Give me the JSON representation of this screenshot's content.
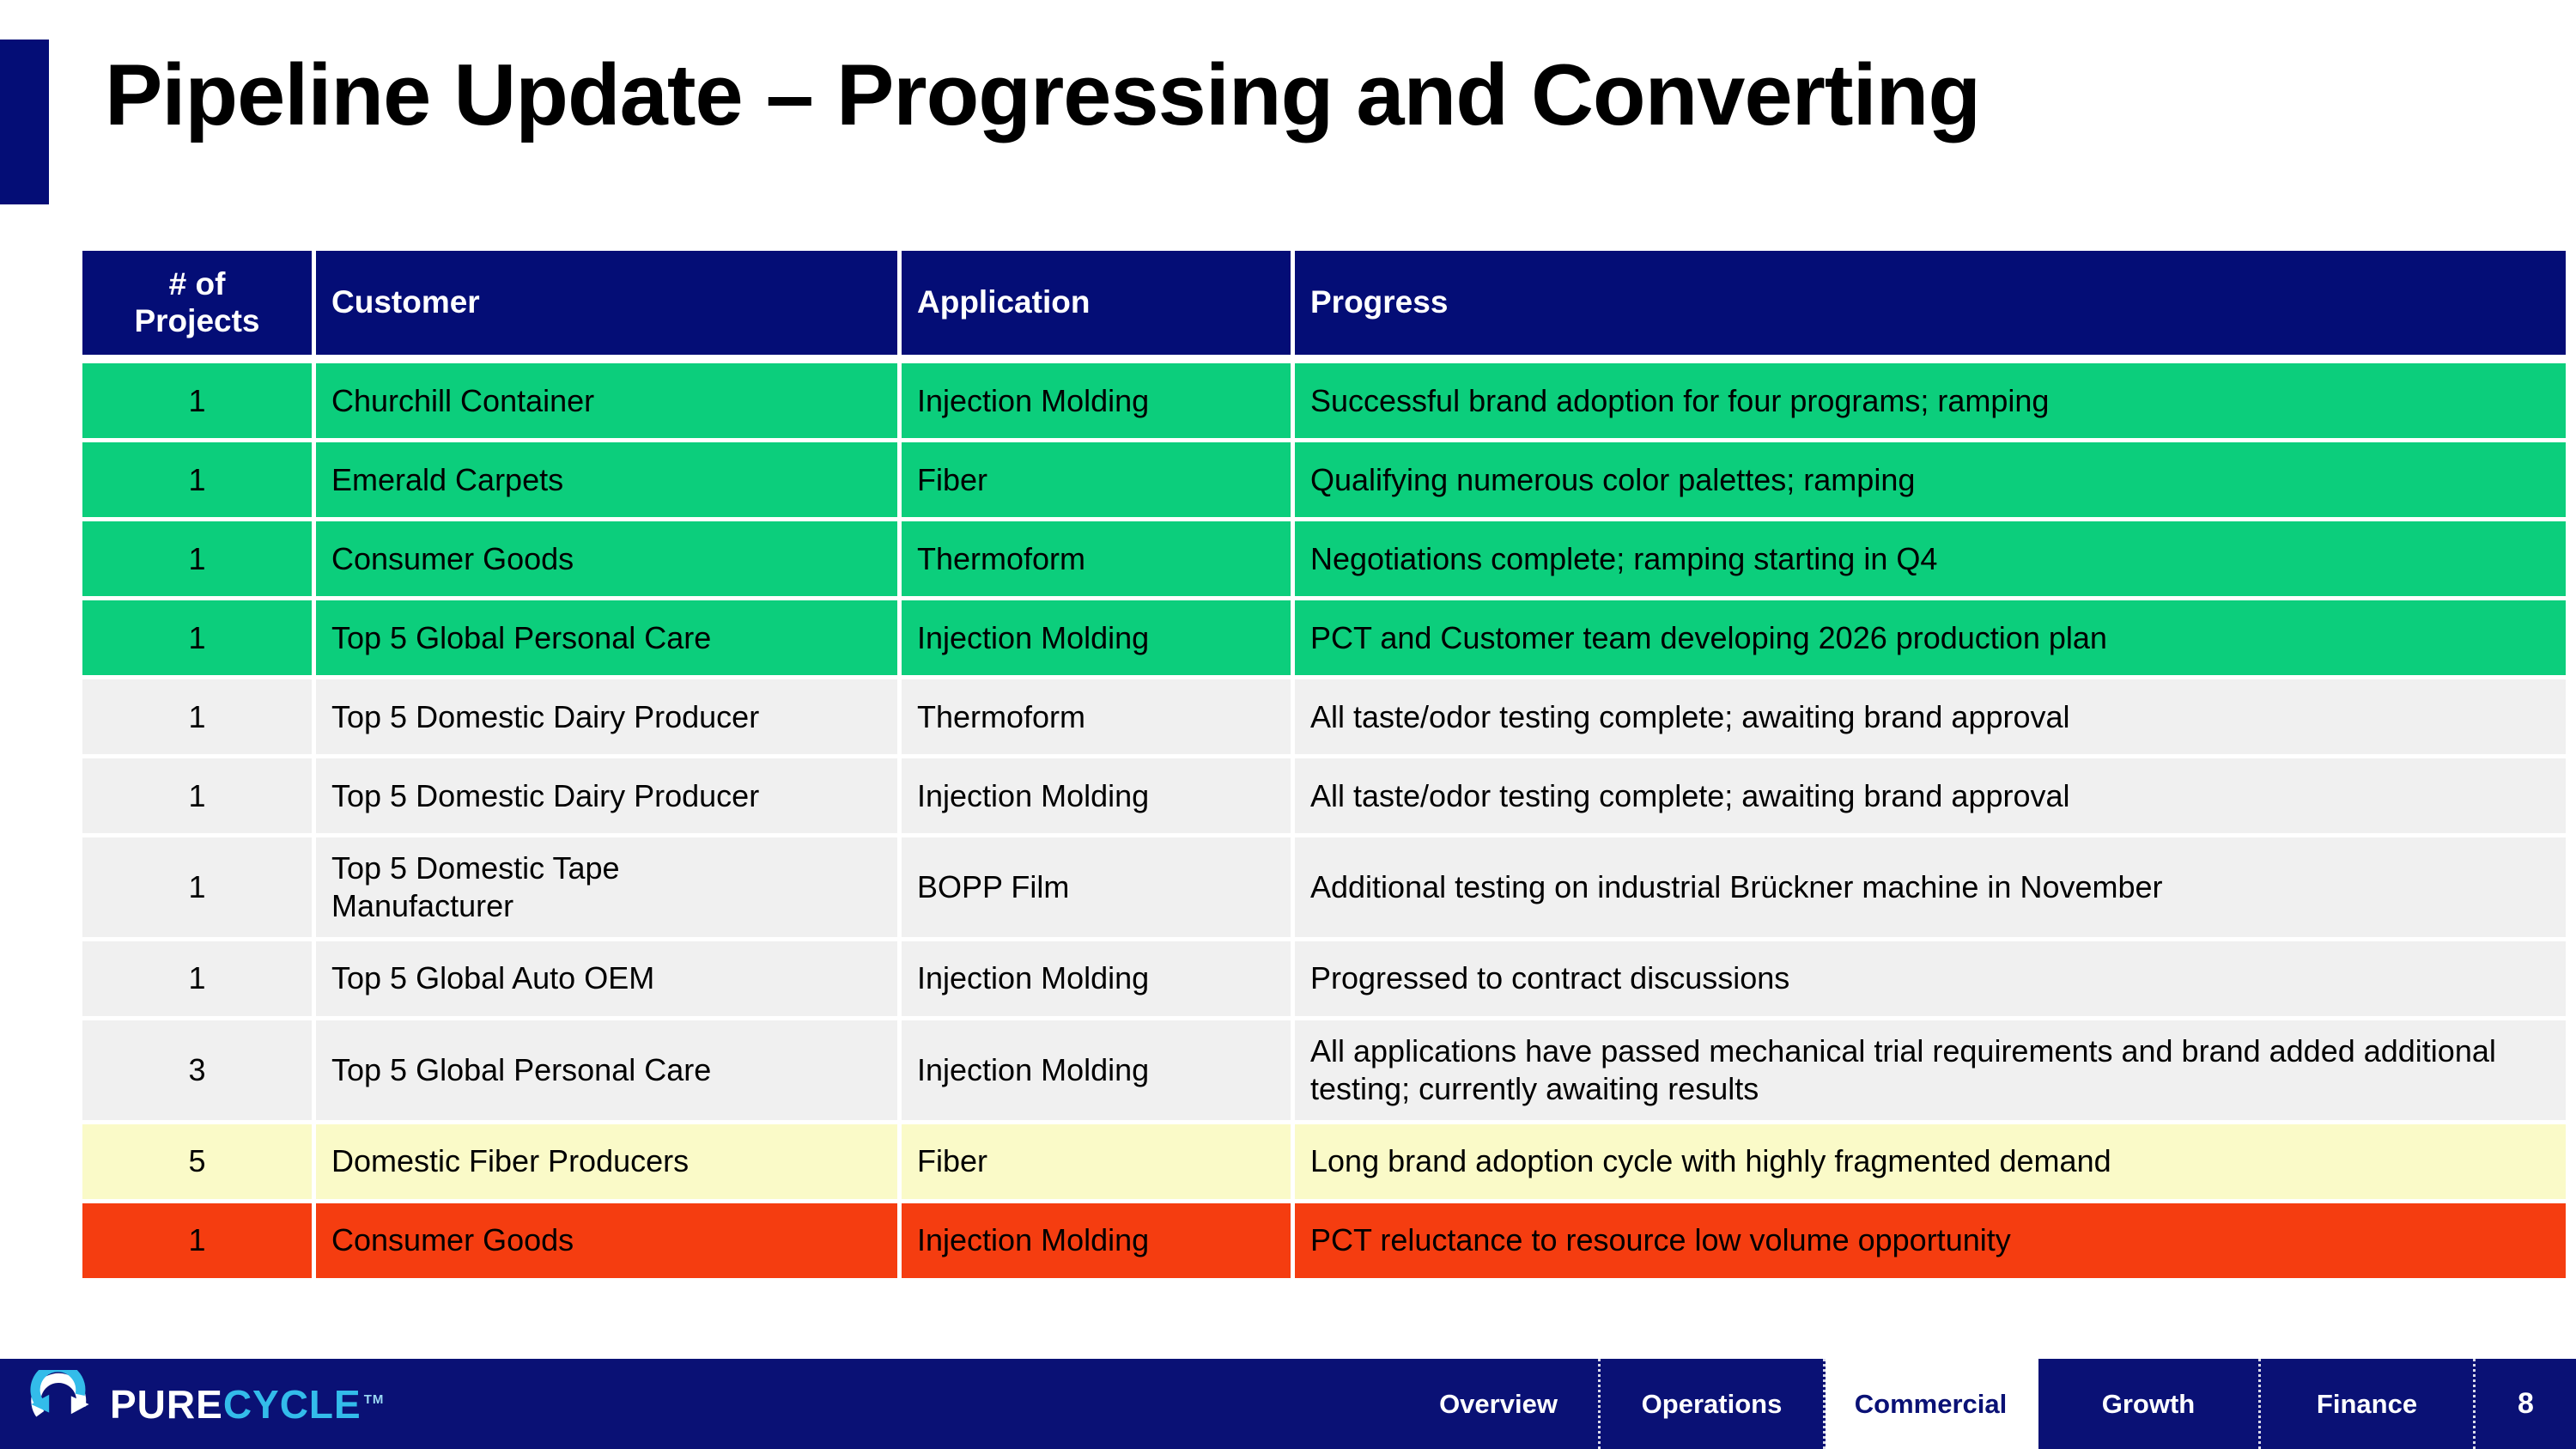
{
  "slide": {
    "title": "Pipeline Update – Progressing and Converting"
  },
  "table": {
    "headers": [
      "# of Projects",
      "Customer",
      "Application",
      "Progress"
    ],
    "rows": [
      {
        "projects": "1",
        "customer": "Churchill Container",
        "application": "Injection Molding",
        "progress": "Successful brand adoption for four programs; ramping",
        "status": "green"
      },
      {
        "projects": "1",
        "customer": "Emerald Carpets",
        "application": "Fiber",
        "progress": "Qualifying numerous color palettes; ramping",
        "status": "green"
      },
      {
        "projects": "1",
        "customer": "Consumer Goods",
        "application": "Thermoform",
        "progress": "Negotiations complete; ramping starting in Q4",
        "status": "green"
      },
      {
        "projects": "1",
        "customer": "Top 5 Global Personal Care",
        "application": "Injection Molding",
        "progress": "PCT and Customer team developing 2026 production plan",
        "status": "green"
      },
      {
        "projects": "1",
        "customer": "Top 5 Domestic Dairy Producer",
        "application": "Thermoform",
        "progress": "All taste/odor testing complete; awaiting brand approval",
        "status": "gray"
      },
      {
        "projects": "1",
        "customer": "Top 5 Domestic Dairy Producer",
        "application": "Injection Molding",
        "progress": "All taste/odor testing complete; awaiting brand approval",
        "status": "gray"
      },
      {
        "projects": "1",
        "customer": "Top 5 Domestic Tape Manufacturer",
        "application": "BOPP Film",
        "progress": "Additional testing on industrial Brückner machine in November",
        "status": "gray"
      },
      {
        "projects": "1",
        "customer": "Top 5 Global Auto OEM",
        "application": "Injection Molding",
        "progress": "Progressed to contract discussions",
        "status": "gray"
      },
      {
        "projects": "3",
        "customer": "Top 5 Global Personal Care",
        "application": "Injection Molding",
        "progress": "All applications have passed mechanical trial requirements and brand added additional testing; currently awaiting results",
        "status": "gray"
      },
      {
        "projects": "5",
        "customer": "Domestic Fiber Producers",
        "application": "Fiber",
        "progress": "Long brand adoption cycle with highly fragmented demand",
        "status": "yellow"
      },
      {
        "projects": "1",
        "customer": "Consumer Goods",
        "application": "Injection Molding",
        "progress": "PCT reluctance to resource low volume opportunity",
        "status": "red"
      }
    ]
  },
  "footer": {
    "logo": {
      "pure": "PURE",
      "cycle": "CYCLE",
      "tm": "TM"
    },
    "tabs": [
      {
        "label": "Overview",
        "active": false
      },
      {
        "label": "Operations",
        "active": false
      },
      {
        "label": "Commercial",
        "active": true
      },
      {
        "label": "Growth",
        "active": false
      },
      {
        "label": "Finance",
        "active": false
      }
    ],
    "page_number": "8"
  },
  "colors": {
    "navy": "#040D76",
    "footer-navy": "#0A1175",
    "green": "#0CCE7C",
    "gray": "#F0F0F0",
    "yellow": "#FAFAC8",
    "red": "#F53D10",
    "cyan": "#33BCEA",
    "white": "#FFFFFF"
  }
}
